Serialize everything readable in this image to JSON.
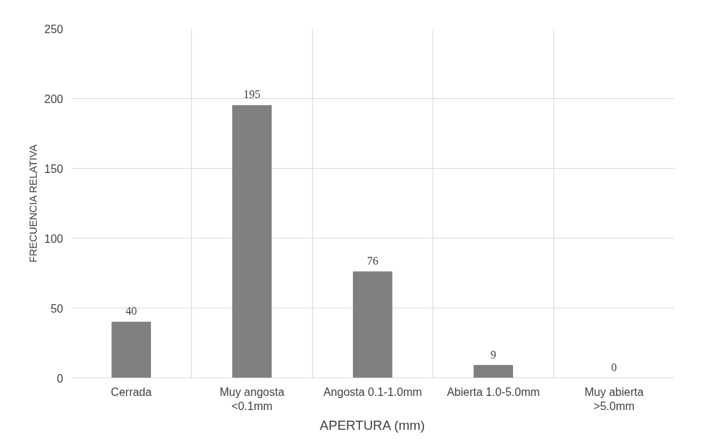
{
  "chart_data": {
    "type": "bar",
    "xlabel": "APERTURA (mm)",
    "ylabel": "FRECUENCIA RELATIVA",
    "categories": [
      "Cerrada",
      "Muy angosta\n<0.1mm",
      "Angosta 0.1-1.0mm",
      "Abierta 1.0-5.0mm",
      "Muy abierta\n>5.0mm"
    ],
    "values": [
      40,
      195,
      76,
      9,
      0
    ],
    "color": "#808080",
    "ylim": [
      0,
      250
    ],
    "yticks": [
      0,
      50,
      100,
      150,
      200,
      250
    ],
    "grid": true,
    "data_labels": true
  }
}
